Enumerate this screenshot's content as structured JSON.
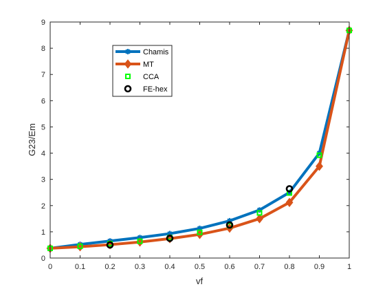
{
  "chart_data": {
    "type": "line",
    "xlabel": "vf",
    "ylabel": "G23/Em",
    "xlim": [
      0,
      1
    ],
    "ylim": [
      0,
      9
    ],
    "x_ticks": [
      0,
      0.1,
      0.2,
      0.3,
      0.4,
      0.5,
      0.6,
      0.7,
      0.8,
      0.9,
      1
    ],
    "x_tick_labels": [
      "0",
      "0.1",
      "0.2",
      "0.3",
      "0.4",
      "0.5",
      "0.6",
      "0.7",
      "0.8",
      "0.9",
      "1"
    ],
    "y_ticks": [
      0,
      1,
      2,
      3,
      4,
      5,
      6,
      7,
      8,
      9
    ],
    "y_tick_labels": [
      "0",
      "1",
      "2",
      "3",
      "4",
      "5",
      "6",
      "7",
      "8",
      "9"
    ],
    "grid": false,
    "legend_position": "top-left",
    "series": [
      {
        "name": "Chamis",
        "style": "line-asterisk",
        "color": "#0072BD",
        "x": [
          0,
          0.1,
          0.2,
          0.3,
          0.4,
          0.5,
          0.6,
          0.7,
          0.8,
          0.9,
          1
        ],
        "y": [
          0.37,
          0.52,
          0.65,
          0.78,
          0.93,
          1.13,
          1.42,
          1.83,
          2.5,
          4.0,
          8.68
        ]
      },
      {
        "name": "MT",
        "style": "line-diamond",
        "color": "#D95319",
        "x": [
          0,
          0.1,
          0.2,
          0.3,
          0.4,
          0.5,
          0.6,
          0.7,
          0.8,
          0.9,
          1
        ],
        "y": [
          0.37,
          0.43,
          0.51,
          0.61,
          0.74,
          0.9,
          1.14,
          1.5,
          2.12,
          3.5,
          8.68
        ]
      },
      {
        "name": "CCA",
        "style": "square-marker",
        "color": "#00FF00",
        "x": [
          0,
          0.1,
          0.2,
          0.3,
          0.4,
          0.5,
          0.6,
          0.7,
          0.8,
          0.9,
          1
        ],
        "y": [
          0.37,
          0.45,
          0.55,
          0.64,
          0.78,
          0.98,
          1.24,
          1.72,
          2.48,
          3.92,
          8.68
        ]
      },
      {
        "name": "FE-hex",
        "style": "circle-marker",
        "color": "#000000",
        "x": [
          0.2,
          0.4,
          0.6,
          0.8
        ],
        "y": [
          0.5,
          0.75,
          1.26,
          2.64
        ]
      }
    ]
  }
}
